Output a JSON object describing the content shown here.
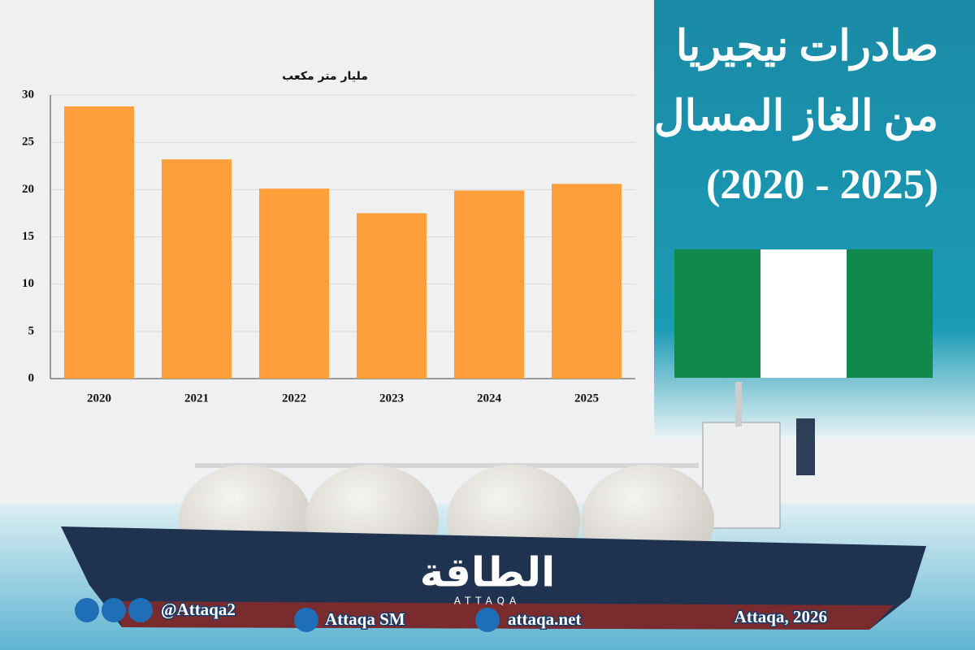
{
  "chart_data": {
    "type": "bar",
    "title": [
      "صادرات نيجيريا",
      "من الغاز المسال",
      "(2020 - 2025)"
    ],
    "y_label": "مليار متر مكعب",
    "categories": [
      "2020",
      "2021",
      "2022",
      "2023",
      "2024",
      "2025"
    ],
    "values": [
      28.8,
      23.2,
      20.1,
      17.5,
      19.9,
      20.6
    ],
    "color": "#fe9f3b",
    "ylim": [
      0,
      30
    ],
    "yticks": [
      0,
      5,
      10,
      15,
      20,
      25,
      30
    ],
    "grid": true,
    "source": "Attaqa, 2026"
  },
  "branding": {
    "logo": "الطاقة",
    "logo_latin": "ATTAQA",
    "social": "@Attaqa2",
    "youtube": "Attaqa SM",
    "website": "attaqa.net"
  }
}
